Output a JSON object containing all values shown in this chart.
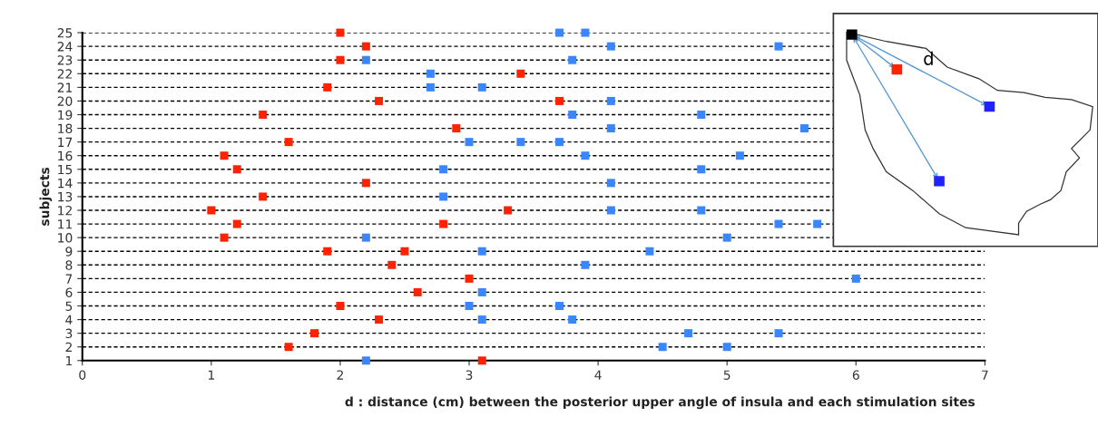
{
  "chart_data": {
    "type": "scatter",
    "xlabel": "d : distance (cm) between the posterior upper angle of insula and each stimulation sites",
    "ylabel": "subjects",
    "annotations": [
      "d"
    ],
    "series": [
      {
        "color": "#ff2200",
        "x": [
          2.0,
          2.2,
          2.0,
          3.4,
          1.9,
          2.3,
          3.7,
          1.4,
          2.9,
          1.6,
          1.1,
          1.2,
          2.2,
          1.4,
          1.0,
          3.3,
          1.2,
          2.8,
          1.1,
          1.9,
          2.5,
          2.4,
          3.0,
          2.6,
          2.0,
          2.3,
          1.8,
          1.6,
          3.1
        ],
        "values": [
          25,
          24,
          23,
          22,
          21,
          20,
          20,
          19,
          18,
          17,
          16,
          15,
          14,
          13,
          12,
          12,
          11,
          11,
          10,
          9,
          9,
          8,
          7,
          6,
          5,
          4,
          3,
          2,
          1
        ]
      },
      {
        "color": "#3a86ff",
        "x": [
          3.7,
          3.9,
          4.1,
          5.4,
          2.2,
          3.8,
          2.7,
          2.7,
          3.1,
          4.1,
          3.8,
          4.8,
          4.1,
          5.6,
          3.0,
          3.4,
          3.7,
          3.9,
          5.1,
          2.8,
          4.8,
          4.1,
          2.8,
          4.1,
          4.8,
          5.4,
          5.7,
          2.2,
          5.0,
          3.1,
          4.4,
          3.9,
          6.0,
          3.1,
          3.0,
          3.7,
          3.1,
          3.8,
          4.7,
          5.4,
          4.5,
          5.0,
          2.2
        ],
        "values": [
          25,
          25,
          24,
          24,
          23,
          23,
          22,
          21,
          21,
          20,
          19,
          19,
          18,
          18,
          17,
          17,
          17,
          16,
          16,
          15,
          15,
          14,
          13,
          12,
          12,
          11,
          11,
          10,
          10,
          9,
          9,
          8,
          7,
          6,
          5,
          5,
          4,
          4,
          3,
          3,
          2,
          2,
          1
        ]
      }
    ],
    "xlim": [
      0,
      7
    ],
    "xticks": [
      0,
      1,
      2,
      3,
      4,
      5,
      6,
      7
    ],
    "ylim": [
      1,
      25
    ],
    "yticks": [
      1,
      2,
      3,
      4,
      5,
      6,
      7,
      8,
      9,
      10,
      11,
      12,
      13,
      14,
      15,
      16,
      17,
      18,
      19,
      20,
      21,
      22,
      23,
      24,
      25
    ],
    "grid": "y",
    "marker": "square"
  }
}
